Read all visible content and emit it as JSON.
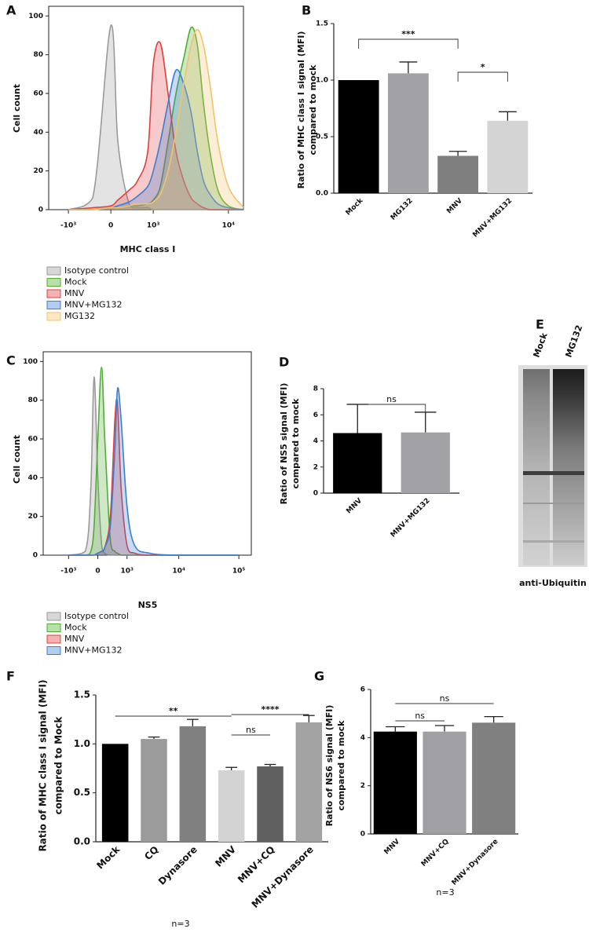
{
  "chart_data": [
    {
      "type": "area",
      "label": "A",
      "xlabel": "MHC class I",
      "ylabel": "Cell count",
      "xscale": "symlog",
      "x": [
        -1000,
        -300,
        0,
        100,
        300,
        500,
        800,
        1000,
        1300,
        1700,
        2200,
        2800,
        3500,
        4200,
        5000,
        6000,
        7500,
        10000,
        15000
      ],
      "xlim": [
        -2000,
        15000
      ],
      "xticks": [
        {
          "value": -1000,
          "label": "-10³"
        },
        0,
        {
          "value": 1000,
          "label": "10³"
        },
        {
          "value": 10000,
          "label": "10⁴"
        }
      ],
      "ylim": [
        0,
        105
      ],
      "yticks": [
        0,
        20,
        40,
        60,
        80,
        100
      ],
      "series": [
        {
          "name": "Isotype control",
          "color": "#9a9a9a",
          "values": [
            0,
            6,
            95,
            35,
            3,
            1,
            1,
            0,
            0,
            0,
            0,
            0,
            0,
            0,
            0,
            0,
            0,
            0,
            0
          ]
        },
        {
          "name": "Mock",
          "color": "#4fae32",
          "values": [
            0,
            0,
            1,
            1,
            2,
            2,
            3,
            5,
            12,
            35,
            60,
            78,
            94,
            85,
            55,
            30,
            10,
            2,
            0
          ]
        },
        {
          "name": "MNV",
          "color": "#e0403f",
          "values": [
            0,
            1,
            2,
            5,
            10,
            15,
            30,
            75,
            86,
            60,
            30,
            15,
            6,
            3,
            1,
            0,
            0,
            0,
            0
          ]
        },
        {
          "name": "MNV+MG132",
          "color": "#3b7fd4",
          "values": [
            0,
            0,
            1,
            2,
            4,
            7,
            12,
            20,
            35,
            55,
            72,
            65,
            50,
            30,
            15,
            8,
            3,
            1,
            0
          ]
        },
        {
          "name": "MG132",
          "color": "#f2c36b",
          "values": [
            0,
            0,
            1,
            1,
            2,
            3,
            3,
            4,
            8,
            20,
            40,
            65,
            85,
            93,
            85,
            65,
            35,
            12,
            1
          ]
        }
      ]
    },
    {
      "type": "bar",
      "label": "B",
      "ylabel": [
        "Ratio of MHC class I signal (MFI)",
        "compared to mock"
      ],
      "categories": [
        "Mock",
        "MG132",
        "MNV",
        "MNV+MG132"
      ],
      "values": [
        1.0,
        1.06,
        0.33,
        0.64
      ],
      "errors": [
        null,
        0.1,
        0.04,
        0.08
      ],
      "colors": [
        "#000000",
        "#a2a2a6",
        "#7f7f7f",
        "#d4d4d4"
      ],
      "ylim": [
        0,
        1.5
      ],
      "yticks": [
        {
          "value": 0,
          "label": "0.0"
        },
        0.5,
        {
          "value": 1,
          "label": "1.0"
        },
        1.5
      ],
      "significance": [
        {
          "label": "***",
          "pair": [
            "Mock",
            "MNV"
          ]
        },
        {
          "label": "*",
          "pair": [
            "MNV",
            "MNV+MG132"
          ]
        }
      ]
    },
    {
      "type": "area",
      "label": "C",
      "xlabel": "NS5",
      "ylabel": "Cell count",
      "xscale": "symlog",
      "x": [
        -1000,
        -300,
        -150,
        -75,
        0,
        75,
        150,
        300,
        450,
        550,
        700,
        1000,
        1500,
        3000,
        10000,
        100000
      ],
      "xlim": [
        -3400,
        160000
      ],
      "xticks": [
        {
          "value": -1000,
          "label": "-10³"
        },
        0,
        {
          "value": 1000,
          "label": "10³"
        },
        {
          "value": 10000,
          "label": "10⁴"
        },
        {
          "value": 100000,
          "label": "10⁵"
        }
      ],
      "ylim": [
        0,
        105
      ],
      "yticks": [
        0,
        20,
        40,
        60,
        80,
        100
      ],
      "series": [
        {
          "name": "Isotype control",
          "color": "#9a9a9a",
          "values": [
            0,
            2,
            35,
            92,
            40,
            6,
            1,
            0,
            0,
            0,
            0,
            0,
            0,
            0,
            0,
            0
          ]
        },
        {
          "name": "Mock",
          "color": "#4fae32",
          "values": [
            0,
            0,
            2,
            15,
            60,
            97,
            60,
            8,
            2,
            1,
            0,
            0,
            0,
            0,
            0,
            0
          ]
        },
        {
          "name": "MNV",
          "color": "#e0403f",
          "values": [
            0,
            0,
            0,
            0,
            1,
            2,
            4,
            20,
            70,
            78,
            35,
            5,
            1,
            0,
            0,
            0
          ]
        },
        {
          "name": "MNV+MG132",
          "color": "#3b7fd4",
          "values": [
            0,
            0,
            0,
            0,
            1,
            2,
            4,
            15,
            55,
            86,
            70,
            25,
            5,
            1,
            0,
            0
          ]
        }
      ]
    },
    {
      "type": "bar",
      "label": "D",
      "ylabel": [
        "Ratio of NS5 signal (MFI)",
        "compared to mock"
      ],
      "categories": [
        "MNV",
        "MNV+MG132"
      ],
      "values": [
        4.6,
        4.65
      ],
      "errors": [
        2.2,
        1.55
      ],
      "colors": [
        "#000000",
        "#a2a2a6"
      ],
      "ylim": [
        0,
        8
      ],
      "yticks": [
        0,
        2,
        4,
        6,
        8
      ],
      "significance": [
        {
          "label": "ns",
          "pair": [
            "MNV",
            "MNV+MG132"
          ]
        }
      ]
    },
    {
      "type": "blot",
      "label": "E",
      "lanes": [
        "Mock",
        "MG132"
      ],
      "caption": "anti-Ubiquitin"
    },
    {
      "type": "bar",
      "label": "F",
      "ylabel": [
        "Ratio of MHC class I signal (MFI)",
        "compared to Mock"
      ],
      "categories": [
        "Mock",
        "CQ",
        "Dynasore",
        "MNV",
        "MNV+CQ",
        "MNV+Dynasore"
      ],
      "values": [
        1.0,
        1.05,
        1.18,
        0.73,
        0.77,
        1.22
      ],
      "errors": [
        null,
        0.02,
        0.07,
        0.03,
        0.02,
        0.07
      ],
      "colors": [
        "#000000",
        "#9b9b9b",
        "#808080",
        "#d3d3d3",
        "#5f5f5f",
        "#a3a3a3"
      ],
      "ylim": [
        0,
        1.5
      ],
      "yticks": [
        {
          "value": 0,
          "label": "0.0"
        },
        0.5,
        {
          "value": 1,
          "label": "1.0"
        },
        1.5
      ],
      "significance": [
        {
          "label": "**",
          "pair": [
            "Mock",
            "MNV"
          ]
        },
        {
          "label": "ns",
          "pair": [
            "MNV",
            "MNV+CQ"
          ]
        },
        {
          "label": "****",
          "pair": [
            "MNV",
            "MNV+Dynasore"
          ]
        }
      ],
      "footnote": "n=3"
    },
    {
      "type": "bar",
      "label": "G",
      "ylabel": [
        "Ratio of NS6 signal (MFI)",
        "compared to mock"
      ],
      "categories": [
        "MNV",
        "MNV+CQ",
        "MNV+Dynasore"
      ],
      "values": [
        4.25,
        4.25,
        4.62
      ],
      "errors": [
        0.2,
        0.25,
        0.25
      ],
      "colors": [
        "#000000",
        "#a0a0a4",
        "#808080"
      ],
      "ylim": [
        0,
        6
      ],
      "yticks": [
        0,
        2,
        4,
        6
      ],
      "significance": [
        {
          "label": "ns",
          "pair": [
            "MNV",
            "MNV+CQ"
          ]
        },
        {
          "label": "ns",
          "pair": [
            "MNV",
            "MNV+Dynasore"
          ]
        }
      ],
      "footnote": "n=3"
    }
  ]
}
